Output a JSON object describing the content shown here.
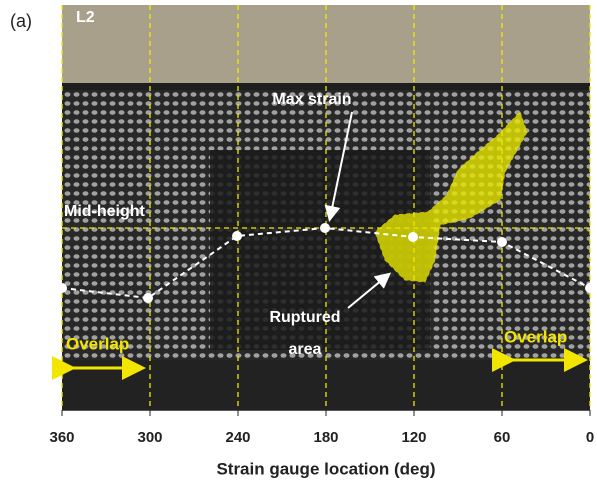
{
  "panel_label": "(a)",
  "chart_data": {
    "type": "photo-overlay",
    "x_label": "Strain gauge location (deg)",
    "xlim": [
      360,
      0
    ],
    "xticks": [
      360,
      300,
      240,
      180,
      120,
      60,
      0
    ],
    "grid": true,
    "specimen_label": "L2",
    "annotations": {
      "max_strain": "Max strain",
      "mid_height": "Mid-height",
      "ruptured_1": "Ruptured",
      "ruptured_2": "area",
      "overlap_left": "Overlap",
      "overlap_right": "Overlap"
    }
  }
}
